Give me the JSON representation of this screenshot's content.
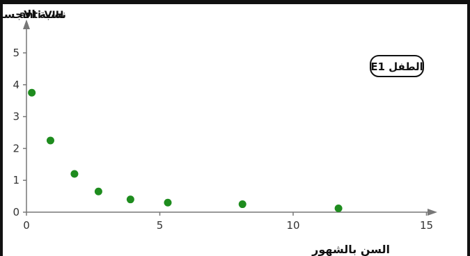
{
  "chart_data": {
    "type": "scatter",
    "y_title_arabic": "نسبة الاجسام المضادة",
    "y_title_latin": "anti-VIH",
    "xlabel": "السن بالشهور",
    "annotation": "الطفل E1",
    "xlim": [
      0,
      15
    ],
    "ylim": [
      0,
      5
    ],
    "x_ticks": [
      0,
      5,
      10,
      15
    ],
    "y_ticks": [
      0,
      1,
      2,
      3,
      4,
      5
    ],
    "series": [
      {
        "color": "#1e8c1e",
        "points": [
          {
            "x": 0.2,
            "y": 3.75
          },
          {
            "x": 0.9,
            "y": 2.25
          },
          {
            "x": 1.8,
            "y": 1.2
          },
          {
            "x": 2.7,
            "y": 0.65
          },
          {
            "x": 3.9,
            "y": 0.4
          },
          {
            "x": 5.3,
            "y": 0.3
          },
          {
            "x": 8.1,
            "y": 0.25
          },
          {
            "x": 11.7,
            "y": 0.12
          }
        ]
      }
    ],
    "grid": false
  }
}
